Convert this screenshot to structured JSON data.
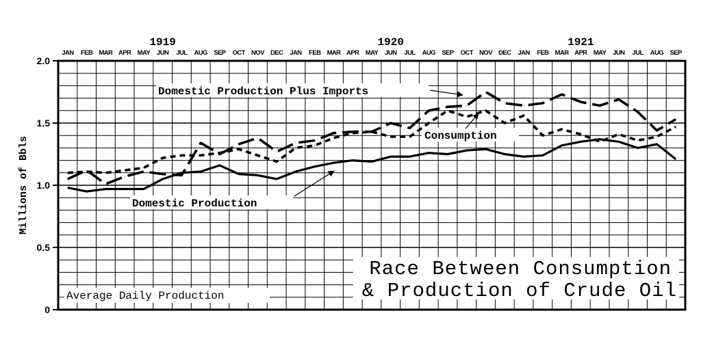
{
  "chart_data": {
    "type": "line",
    "title_lines": [
      "Race Between Consumption",
      "& Production of Crude Oil"
    ],
    "note": "Average Daily Production",
    "ylabel": "Millions of Bbls",
    "ylim": [
      0,
      2.0
    ],
    "yticks": [
      "0",
      "0.5",
      "1.0",
      "1.5",
      "2.0"
    ],
    "year_labels": [
      {
        "text": "1919",
        "at_index": 5.5
      },
      {
        "text": "1920",
        "at_index": 17.5
      },
      {
        "text": "1921",
        "at_index": 27.5
      }
    ],
    "categories": [
      "JAN",
      "FEB",
      "MAR",
      "APR",
      "MAY",
      "JUN",
      "JUL",
      "AUG",
      "SEP",
      "OCT",
      "NOV",
      "DEC",
      "JAN",
      "FEB",
      "MAR",
      "APR",
      "MAY",
      "JUN",
      "JUL",
      "AUG",
      "SEP",
      "OCT",
      "NOV",
      "DEC",
      "JAN",
      "FEB",
      "MAR",
      "APR",
      "MAY",
      "JUN",
      "JUL",
      "AUG",
      "SEP"
    ],
    "series": [
      {
        "name": "Domestic Production Plus Imports",
        "style": "longdash",
        "values": [
          1.05,
          1.12,
          1.01,
          1.07,
          1.11,
          1.09,
          1.08,
          1.34,
          1.25,
          1.33,
          1.38,
          1.27,
          1.34,
          1.36,
          1.42,
          1.43,
          1.43,
          1.5,
          1.46,
          1.6,
          1.63,
          1.64,
          1.75,
          1.66,
          1.64,
          1.66,
          1.73,
          1.67,
          1.64,
          1.69,
          1.59,
          1.44,
          1.53
        ]
      },
      {
        "name": "Consumption",
        "style": "shortdash",
        "values": [
          1.1,
          1.11,
          1.1,
          1.12,
          1.14,
          1.22,
          1.24,
          1.24,
          1.26,
          1.29,
          1.24,
          1.19,
          1.3,
          1.32,
          1.38,
          1.42,
          1.43,
          1.39,
          1.39,
          1.5,
          1.6,
          1.55,
          1.6,
          1.5,
          1.56,
          1.4,
          1.45,
          1.41,
          1.35,
          1.41,
          1.36,
          1.39,
          1.47
        ]
      },
      {
        "name": "Domestic Production",
        "style": "solid",
        "values": [
          0.98,
          0.95,
          0.97,
          0.97,
          0.97,
          1.05,
          1.1,
          1.11,
          1.16,
          1.09,
          1.08,
          1.05,
          1.11,
          1.15,
          1.18,
          1.2,
          1.19,
          1.23,
          1.23,
          1.26,
          1.25,
          1.28,
          1.29,
          1.25,
          1.23,
          1.24,
          1.32,
          1.35,
          1.37,
          1.35,
          1.3,
          1.33,
          1.21
        ]
      }
    ],
    "grid": true
  }
}
